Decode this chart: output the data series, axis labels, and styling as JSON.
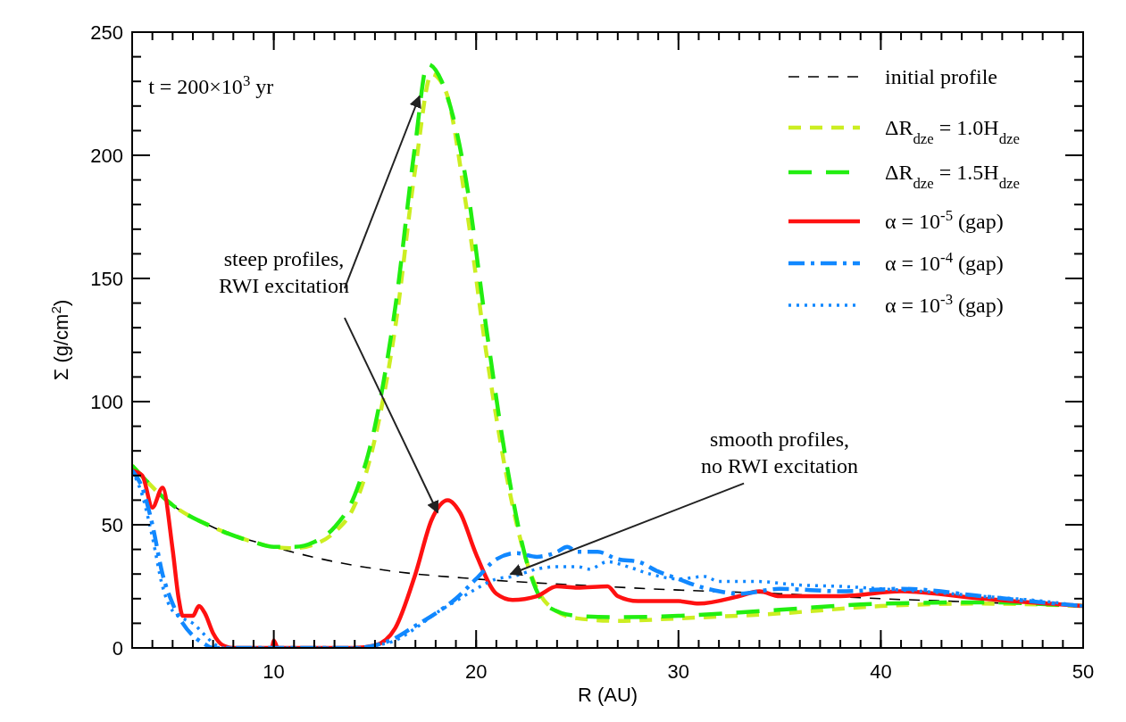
{
  "chart_data": {
    "type": "line",
    "xlabel": "R (AU)",
    "ylabel": "Σ (g/cm$^{2}$)",
    "xlim": [
      3,
      50
    ],
    "xticks": [
      10,
      20,
      30,
      40,
      50
    ],
    "ylim": [
      0,
      250
    ],
    "yticks": [
      0,
      50,
      100,
      150,
      200,
      250
    ],
    "grid": false,
    "legend": "top right",
    "annotations": [
      "t = 200×10$^{3}$ yr",
      {
        "text": "steep profiles,\nRWI excitation",
        "x": 17.2,
        "y": 224
      },
      {
        "text": "smooth profiles,\nno RWI excitation",
        "x": 21.7,
        "y": 30
      }
    ],
    "series": [
      {
        "name": "initial profile",
        "color": "#000000",
        "line_style": "dashed",
        "x": [
          3,
          5,
          7,
          10,
          13,
          16,
          20,
          25,
          30,
          35,
          40,
          45,
          50
        ],
        "values": [
          74,
          58,
          49,
          41,
          35,
          31,
          28,
          25.5,
          23.5,
          22,
          20,
          18.5,
          17
        ]
      },
      {
        "name": "ΔR$_{dze}$ = 1.0H$_{dze}$",
        "color": "#ccee22",
        "line_style": "dashed",
        "x": [
          3,
          5,
          7,
          9,
          10,
          11,
          12,
          13,
          14,
          15,
          16,
          17,
          17.8,
          18.5,
          19.5,
          20.5,
          21.5,
          22.5,
          23.5,
          25,
          27,
          30,
          35,
          40,
          45,
          50
        ],
        "values": [
          74,
          58,
          49,
          43,
          41,
          40.5,
          42,
          47,
          58,
          85,
          130,
          195,
          233,
          226,
          180,
          120,
          70,
          35,
          18,
          12,
          11,
          12,
          14,
          17,
          18,
          17
        ]
      },
      {
        "name": "ΔR$_{dze}$ = 1.5H$_{dze}$",
        "color": "#22ee11",
        "line_style": "dashed",
        "x": [
          3,
          5,
          7,
          9,
          10,
          11,
          12,
          13,
          14,
          15,
          16,
          17,
          17.6,
          18.3,
          19.5,
          20.5,
          21.5,
          22.5,
          23.5,
          25,
          27,
          30,
          35,
          40,
          45,
          50
        ],
        "values": [
          74,
          58,
          49,
          43,
          41,
          41,
          43,
          49,
          62,
          90,
          138,
          205,
          237,
          230,
          190,
          130,
          75,
          35,
          17,
          13,
          12.5,
          13,
          15.5,
          18,
          18.5,
          17
        ]
      },
      {
        "name": "α = 10$^{-5}$ (gap)",
        "color": "#ff1111",
        "line_style": "solid",
        "x": [
          3,
          3.5,
          4,
          4.5,
          5,
          5.3,
          5.5,
          6,
          6.3,
          6.6,
          7,
          7.5,
          8,
          9.5,
          9.9,
          10,
          10.2,
          12,
          14,
          15,
          16,
          17,
          17.8,
          18.6,
          19.2,
          20,
          21,
          21.8,
          23,
          24,
          25,
          26.5,
          27,
          28,
          30,
          31,
          33,
          34,
          35,
          38,
          41,
          45,
          50
        ],
        "values": [
          72,
          70,
          57,
          65,
          40,
          20,
          13,
          13,
          17,
          14,
          6,
          1,
          0,
          0,
          0,
          3,
          0,
          0,
          0,
          1,
          8,
          30,
          52,
          60,
          55,
          38,
          22,
          19.5,
          21,
          25,
          24.5,
          25,
          21,
          19,
          19,
          18,
          21,
          23,
          21,
          21,
          23,
          20,
          17
        ]
      },
      {
        "name": "α = 10$^{-4}$ (gap)",
        "color": "#1188ff",
        "line_style": "dashdot",
        "x": [
          3,
          3.5,
          4,
          4.5,
          5,
          5.5,
          6,
          6.5,
          7,
          14,
          15,
          16,
          17,
          18,
          19,
          20,
          21,
          22,
          23,
          24,
          24.5,
          25,
          26,
          27,
          28,
          29,
          30,
          31,
          32,
          33,
          35,
          38,
          41,
          45,
          48,
          50
        ],
        "values": [
          72,
          65,
          50,
          30,
          18,
          10,
          5,
          2,
          0,
          0,
          1,
          4,
          9,
          14,
          20,
          28,
          36,
          38.5,
          37,
          39,
          41,
          39,
          39,
          36,
          35,
          31,
          28,
          25,
          23,
          22,
          24,
          23,
          24,
          21,
          18.5,
          17
        ]
      },
      {
        "name": "α = 10$^{-3}$ (gap)",
        "color": "#1188ff",
        "line_style": "dotted",
        "x": [
          3,
          3.5,
          4,
          4.5,
          5,
          5.5,
          6,
          6.5,
          7,
          7.5,
          14,
          15,
          16,
          17,
          18,
          19,
          20,
          21,
          21.8,
          23,
          24,
          25,
          25.6,
          26.5,
          27.5,
          28.6,
          30,
          31.3,
          32,
          33.8,
          36,
          38,
          40,
          42,
          45,
          48,
          50
        ],
        "values": [
          72,
          62,
          45,
          25,
          15,
          12,
          10,
          6,
          2,
          0,
          0,
          1,
          3,
          8,
          14,
          19,
          24,
          28,
          29,
          32,
          33,
          33,
          32,
          35,
          33,
          30,
          28,
          29,
          27,
          27,
          25.5,
          25,
          24,
          23,
          21,
          19,
          17
        ]
      }
    ]
  }
}
